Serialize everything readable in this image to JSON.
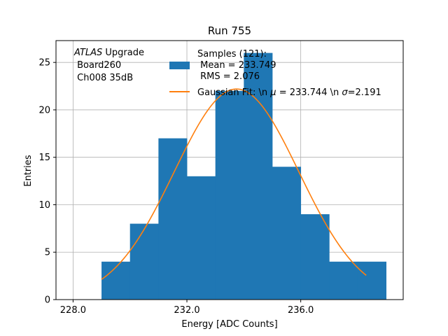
{
  "chart_data": {
    "type": "bar",
    "title": "Run 755",
    "xlabel": "Energy [ADC Counts]",
    "ylabel": "Entries",
    "xlim": [
      227.4,
      239.6
    ],
    "ylim": [
      0,
      27.3
    ],
    "grid": true,
    "legend_placement": "top-right",
    "bin_edges": [
      229,
      230,
      231,
      232,
      233,
      234,
      235,
      236,
      237,
      238,
      239
    ],
    "counts": [
      4,
      8,
      17,
      13,
      22,
      26,
      14,
      9,
      4,
      4
    ],
    "x_ticks": [
      228,
      232,
      236
    ],
    "x_tick_labels": [
      "228.0",
      "232.0",
      "236.0"
    ],
    "y_ticks": [
      0,
      5,
      10,
      15,
      20,
      25
    ],
    "y_tick_labels": [
      "0",
      "5",
      "10",
      "15",
      "20",
      "25"
    ],
    "histogram_color": "#1f77b4",
    "fit_color": "#ff7f0e",
    "fit": {
      "mu": 233.744,
      "sigma": 2.191,
      "amplitude": 22.2,
      "x_range": [
        229,
        238.3
      ]
    },
    "annotation": {
      "atlas": "ATLAS",
      "upgrade": " Upgrade",
      "board": " Board260",
      "channel": " Ch008 35dB"
    },
    "legend": {
      "hist_line1": "Samples (121):",
      "hist_line2": " Mean = 233.749",
      "hist_line3": " RMS = 2.076",
      "fit_label_prefix": "Gaussian Fit: \\n ",
      "fit_mu_symbol": "μ",
      "fit_mu_value": " = 233.744 \\n ",
      "fit_sigma_symbol": "σ",
      "fit_sigma_value": "=2.191"
    }
  }
}
